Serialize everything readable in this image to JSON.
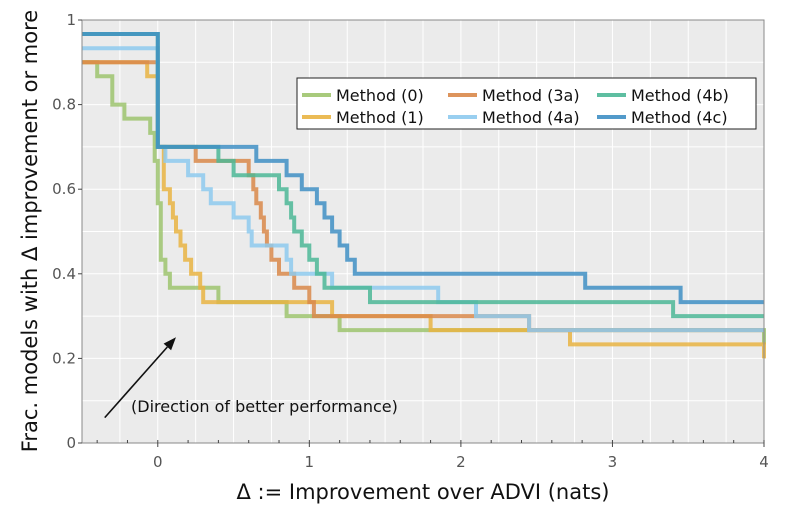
{
  "chart_data": {
    "type": "line",
    "step": true,
    "xlabel": "Δ := Improvement over ADVI (nats)",
    "ylabel": "Frac. models with Δ improvement or more",
    "xlim": [
      -0.5,
      4.0
    ],
    "ylim": [
      0.0,
      1.0
    ],
    "xticks": [
      "0",
      "1",
      "2",
      "3",
      "4"
    ],
    "xtick_values": [
      0,
      1,
      2,
      3,
      4
    ],
    "yticks": [
      "0",
      "0.2",
      "0.4",
      "0.6",
      "0.8",
      "1"
    ],
    "ytick_values": [
      0,
      0.2,
      0.4,
      0.6,
      0.8,
      1
    ],
    "grid": true,
    "legend_position": "top-right",
    "annotation": {
      "text": "(Direction of better performance)",
      "arrow_from": [
        -0.35,
        0.06
      ],
      "arrow_to": [
        0.12,
        0.25
      ]
    },
    "series": [
      {
        "name": "Method (0)",
        "color": "#9ec46e",
        "x": [
          -0.5,
          -0.4,
          -0.3,
          -0.22,
          -0.05,
          -0.02,
          0.0,
          0.02,
          0.05,
          0.08,
          0.1,
          0.4,
          0.85,
          1.2,
          4.0
        ],
        "y": [
          0.9,
          0.867,
          0.8,
          0.767,
          0.733,
          0.667,
          0.567,
          0.433,
          0.4,
          0.367,
          0.367,
          0.333,
          0.3,
          0.267,
          0.233
        ]
      },
      {
        "name": "Method (1)",
        "color": "#e9b443",
        "x": [
          -0.5,
          -0.07,
          0.0,
          0.04,
          0.08,
          0.1,
          0.12,
          0.15,
          0.18,
          0.22,
          0.28,
          0.3,
          1.15,
          1.8,
          2.72,
          4.0
        ],
        "y": [
          0.9,
          0.867,
          0.7,
          0.6,
          0.567,
          0.533,
          0.5,
          0.467,
          0.433,
          0.4,
          0.367,
          0.333,
          0.3,
          0.267,
          0.233,
          0.2
        ]
      },
      {
        "name": "Method (3a)",
        "color": "#d9884a",
        "x": [
          -0.5,
          0.0,
          0.03,
          0.25,
          0.55,
          0.6,
          0.63,
          0.65,
          0.68,
          0.7,
          0.72,
          0.75,
          0.8,
          0.9,
          1.0,
          1.03,
          1.25,
          1.5,
          2.15,
          2.45,
          4.0
        ],
        "y": [
          0.9,
          0.7,
          0.7,
          0.667,
          0.667,
          0.633,
          0.6,
          0.567,
          0.533,
          0.5,
          0.467,
          0.433,
          0.4,
          0.367,
          0.333,
          0.3,
          0.3,
          0.3,
          0.3,
          0.267,
          0.267
        ]
      },
      {
        "name": "Method (4a)",
        "color": "#8ecaee",
        "x": [
          -0.5,
          0.0,
          0.05,
          0.2,
          0.3,
          0.35,
          0.5,
          0.6,
          0.62,
          0.65,
          0.85,
          0.88,
          1.15,
          1.25,
          1.85,
          2.1,
          2.45,
          4.0
        ],
        "y": [
          0.933,
          0.7,
          0.667,
          0.633,
          0.6,
          0.567,
          0.533,
          0.5,
          0.467,
          0.467,
          0.433,
          0.4,
          0.367,
          0.367,
          0.333,
          0.3,
          0.267,
          0.267
        ]
      },
      {
        "name": "Method (4b)",
        "color": "#4cb797",
        "x": [
          -0.5,
          0.0,
          0.03,
          0.4,
          0.5,
          0.55,
          0.8,
          0.85,
          0.88,
          0.9,
          0.95,
          1.0,
          1.05,
          1.1,
          1.15,
          1.3,
          1.4,
          1.45,
          2.8,
          3.05,
          3.4,
          4.0
        ],
        "y": [
          0.967,
          0.7,
          0.7,
          0.667,
          0.633,
          0.633,
          0.6,
          0.567,
          0.533,
          0.5,
          0.467,
          0.433,
          0.4,
          0.367,
          0.367,
          0.367,
          0.333,
          0.333,
          0.333,
          0.333,
          0.3,
          0.3
        ]
      },
      {
        "name": "Method (4c)",
        "color": "#3f8fc4",
        "x": [
          -0.5,
          0.0,
          0.07,
          0.45,
          0.65,
          0.85,
          0.95,
          1.05,
          1.1,
          1.15,
          1.2,
          1.25,
          1.3,
          1.48,
          2.82,
          3.05,
          3.45,
          4.0
        ],
        "y": [
          0.967,
          0.7,
          0.7,
          0.7,
          0.667,
          0.633,
          0.6,
          0.567,
          0.533,
          0.5,
          0.467,
          0.433,
          0.4,
          0.4,
          0.367,
          0.367,
          0.333,
          0.333
        ]
      }
    ]
  }
}
